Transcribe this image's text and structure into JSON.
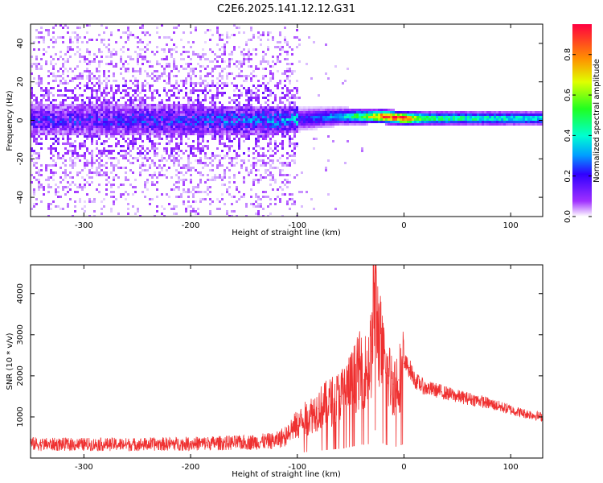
{
  "title": "C2E6.2025.141.12.12.G31",
  "chart_data": [
    {
      "type": "heatmap",
      "title": "",
      "xlabel": "Height of straight line (km)",
      "ylabel": "Frequency (Hz)",
      "xlim": [
        -350,
        130
      ],
      "ylim": [
        -50,
        50
      ],
      "x_ticks": [
        -300,
        -200,
        -100,
        0,
        100
      ],
      "x_tick_labels": [
        "-300",
        "-200",
        "-100",
        "0",
        "100"
      ],
      "y_ticks": [
        -40,
        -20,
        0,
        20,
        40
      ],
      "y_tick_labels": [
        "-40",
        "-20",
        "0",
        "20",
        "40"
      ],
      "colorbar": {
        "label": "Normalized spectral amplitude",
        "range": [
          0.0,
          0.95
        ],
        "ticks": [
          0.0,
          0.2,
          0.4,
          0.6,
          0.8
        ],
        "tick_labels": [
          "0.0",
          "0.2",
          "0.4",
          "0.6",
          "0.8"
        ]
      },
      "description_points": [
        {
          "x": -350,
          "band_center": 0,
          "band_halfwidth": 8,
          "amplitude": 0.12
        },
        {
          "x": -200,
          "band_center": 0,
          "band_halfwidth": 8,
          "amplitude": 0.14
        },
        {
          "x": -110,
          "band_center": 0,
          "band_halfwidth": 7,
          "amplitude": 0.18
        },
        {
          "x": -60,
          "band_center": 2,
          "band_halfwidth": 5,
          "amplitude": 0.35
        },
        {
          "x": -30,
          "band_center": 2,
          "band_halfwidth": 4,
          "amplitude": 0.7
        },
        {
          "x": -20,
          "band_center": 2,
          "band_halfwidth": 4,
          "amplitude": 0.9
        },
        {
          "x": 0,
          "band_center": 1,
          "band_halfwidth": 4,
          "amplitude": 0.95
        },
        {
          "x": 20,
          "band_center": 1,
          "band_halfwidth": 4,
          "amplitude": 0.5
        },
        {
          "x": 80,
          "band_center": 1,
          "band_halfwidth": 4,
          "amplitude": 0.45
        },
        {
          "x": 130,
          "band_center": 1,
          "band_halfwidth": 4,
          "amplitude": 0.4
        }
      ],
      "grid": false
    },
    {
      "type": "line",
      "title": "",
      "xlabel": "Height of straight line (km)",
      "ylabel": "SNR (10 * v/v)",
      "xlim": [
        -350,
        130
      ],
      "ylim": [
        0,
        4700
      ],
      "x_ticks": [
        -300,
        -200,
        -100,
        0,
        100
      ],
      "x_tick_labels": [
        "-300",
        "-200",
        "-100",
        "0",
        "100"
      ],
      "y_ticks": [
        1000,
        2000,
        3000,
        4000
      ],
      "y_tick_labels": [
        "1000",
        "2000",
        "3000",
        "4000"
      ],
      "color": "#ef3131",
      "series": [
        {
          "x": [
            -350,
            -340,
            -300,
            -250,
            -200,
            -150,
            -120,
            -100,
            -80,
            -60,
            -50,
            -40,
            -35,
            -30,
            -27,
            -25,
            -20,
            -15,
            -10,
            -5,
            0,
            5,
            10,
            20,
            30,
            50,
            70,
            90,
            110,
            130
          ],
          "values": [
            400,
            380,
            380,
            380,
            400,
            430,
            480,
            800,
            1200,
            1500,
            1800,
            2200,
            2100,
            2600,
            4600,
            3300,
            2400,
            2000,
            1800,
            1900,
            2300,
            2200,
            1900,
            1700,
            1650,
            1500,
            1400,
            1250,
            1100,
            1000
          ]
        }
      ],
      "grid": false
    }
  ]
}
